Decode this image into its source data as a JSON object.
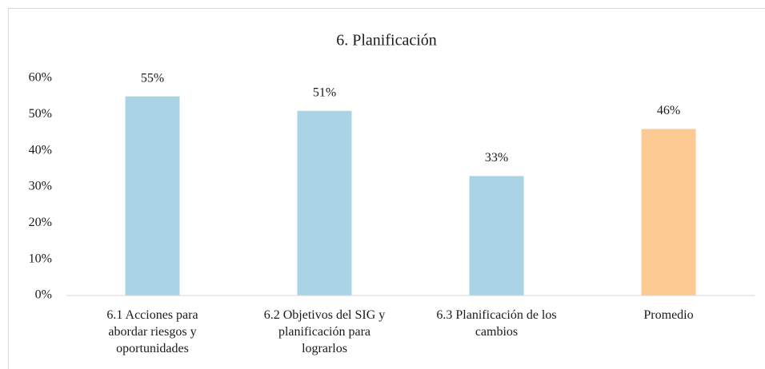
{
  "chart_data": {
    "type": "bar",
    "title": "6. Planificación",
    "categories": [
      "6.1 Acciones para\nabordar riesgos y\noportunidades",
      "6.2 Objetivos del SIG y\nplanificación para\nlograrlos",
      "6.3 Planificación de los\ncambios",
      "Promedio"
    ],
    "values": [
      55,
      51,
      33,
      46
    ],
    "value_labels": [
      "55%",
      "51%",
      "33%",
      "46%"
    ],
    "colors": [
      "#a9d4e6",
      "#a9d4e6",
      "#a9d4e6",
      "#fdca93"
    ],
    "ylim": [
      0,
      60
    ],
    "yticks": [
      {
        "value": 0,
        "label": "0%"
      },
      {
        "value": 10,
        "label": "10%"
      },
      {
        "value": 20,
        "label": "20%"
      },
      {
        "value": 30,
        "label": "30%"
      },
      {
        "value": 40,
        "label": "40%"
      },
      {
        "value": 50,
        "label": "50%"
      },
      {
        "value": 60,
        "label": "60%"
      }
    ],
    "grid": false
  }
}
